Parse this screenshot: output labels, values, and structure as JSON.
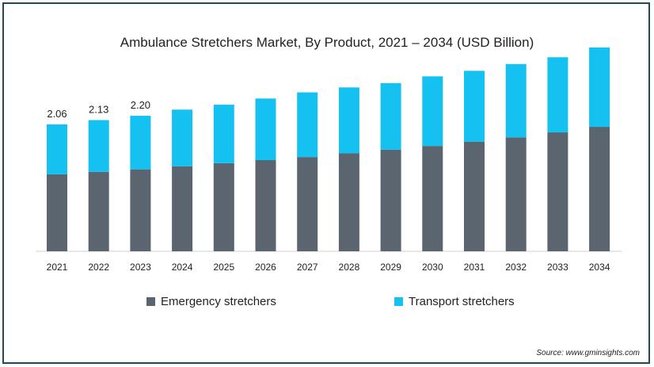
{
  "chart_data": {
    "type": "bar",
    "stacked": true,
    "title": "Ambulance Stretchers Market, By Product, 2021 – 2034 (USD Billion)",
    "categories": [
      "2021",
      "2022",
      "2023",
      "2024",
      "2025",
      "2026",
      "2027",
      "2028",
      "2029",
      "2030",
      "2031",
      "2032",
      "2033",
      "2034"
    ],
    "series": [
      {
        "name": "Emergency stretchers",
        "color": "#5a6570",
        "values": [
          1.25,
          1.29,
          1.33,
          1.38,
          1.43,
          1.48,
          1.53,
          1.59,
          1.65,
          1.71,
          1.78,
          1.85,
          1.93,
          2.02
        ]
      },
      {
        "name": "Transport stretchers",
        "color": "#14c1f0",
        "values": [
          0.81,
          0.84,
          0.87,
          0.92,
          0.95,
          1.0,
          1.05,
          1.07,
          1.08,
          1.13,
          1.15,
          1.19,
          1.22,
          1.29
        ]
      }
    ],
    "data_labels": [
      "2.06",
      "2.13",
      "2.20"
    ],
    "ylim": [
      0,
      3.5
    ],
    "grid": false,
    "legend_position": "bottom"
  },
  "source": "Source: www.gminsights.com"
}
